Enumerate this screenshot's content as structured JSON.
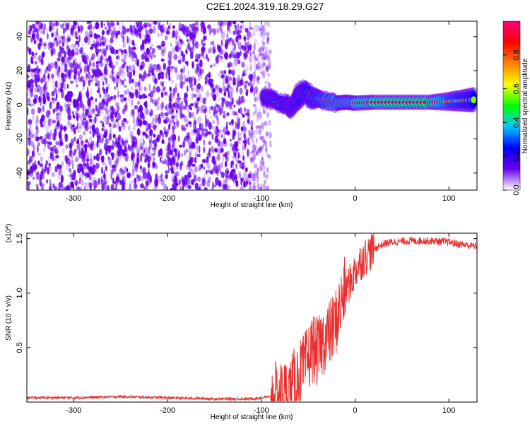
{
  "title": "C2E1.2024.319.18.29.G27",
  "chart_data": [
    {
      "type": "heatmap",
      "xlabel": "Height of straight line (km)",
      "ylabel": "Frequency (Hz)",
      "xlim": [
        -350,
        130
      ],
      "ylim": [
        -50,
        49
      ],
      "x_ticks": [
        -300,
        -200,
        -100,
        0,
        100
      ],
      "y_ticks": [
        -40,
        -20,
        0,
        20,
        40
      ],
      "noise_region": {
        "x": [
          -350,
          -90
        ],
        "y": [
          -50,
          49
        ],
        "color": "#6a00f0"
      },
      "signal_track": [
        {
          "x": -98,
          "y": 5,
          "width_hz": 3,
          "amplitude": 0.45
        },
        {
          "x": -90,
          "y": 3,
          "width_hz": 4,
          "amplitude": 0.4
        },
        {
          "x": -80,
          "y": 1,
          "width_hz": 3,
          "amplitude": 0.45
        },
        {
          "x": -73,
          "y": 0,
          "width_hz": 4,
          "amplitude": 0.5
        },
        {
          "x": -68,
          "y": -2,
          "width_hz": 4,
          "amplitude": 0.4
        },
        {
          "x": -62,
          "y": 5,
          "width_hz": 6,
          "amplitude": 0.5
        },
        {
          "x": -55,
          "y": 7,
          "width_hz": 5,
          "amplitude": 0.55
        },
        {
          "x": -47,
          "y": 5,
          "width_hz": 5,
          "amplitude": 0.6
        },
        {
          "x": -40,
          "y": 3,
          "width_hz": 4,
          "amplitude": 0.65
        },
        {
          "x": -30,
          "y": 2,
          "width_hz": 3,
          "amplitude": 0.75
        },
        {
          "x": -20,
          "y": 1,
          "width_hz": 3,
          "amplitude": 0.8
        },
        {
          "x": -10,
          "y": 1.5,
          "width_hz": 3,
          "amplitude": 0.8
        },
        {
          "x": 0,
          "y": 1,
          "width_hz": 3,
          "amplitude": 0.85
        },
        {
          "x": 20,
          "y": 1.5,
          "width_hz": 3,
          "amplitude": 0.92
        },
        {
          "x": 50,
          "y": 1.5,
          "width_hz": 3,
          "amplitude": 0.95
        },
        {
          "x": 80,
          "y": 1.5,
          "width_hz": 3,
          "amplitude": 0.95
        },
        {
          "x": 100,
          "y": 2,
          "width_hz": 4,
          "amplitude": 0.7
        },
        {
          "x": 115,
          "y": 2.5,
          "width_hz": 5,
          "amplitude": 0.6
        },
        {
          "x": 128,
          "y": 3,
          "width_hz": 6,
          "amplitude": 0.55
        }
      ],
      "colorbar": {
        "label": "Normalized spectral amplitude",
        "range": [
          0.0,
          1.0
        ],
        "ticks": [
          0.0,
          0.2,
          0.4,
          0.6,
          0.8
        ],
        "tick_labels": [
          "0.0",
          "0.2",
          "0.4",
          "0.6",
          "0.8"
        ],
        "colors": [
          "#ffffff",
          "#6a00f0",
          "#0000ff",
          "#00c8ff",
          "#00ff00",
          "#ffff00",
          "#ff8000",
          "#ff0000",
          "#ff0080"
        ]
      }
    },
    {
      "type": "line",
      "xlabel": "Height of straight line (km)",
      "ylabel": "SNR (10 * v/v)",
      "xlim": [
        -350,
        130
      ],
      "ylim": [
        0,
        1.55
      ],
      "x_ticks": [
        -300,
        -200,
        -100,
        0,
        100
      ],
      "y_ticks": [
        0.5,
        1.0,
        1.5
      ],
      "y_tick_labels": [
        "0.5",
        "1.0",
        "1.5"
      ],
      "scale_note": "(x10",
      "scale_exponent": "4",
      "scale_close": ")",
      "color": "#e83030",
      "x": [
        -350,
        -300,
        -250,
        -200,
        -150,
        -110,
        -90,
        -80,
        -70,
        -60,
        -55,
        -50,
        -45,
        -40,
        -35,
        -30,
        -25,
        -20,
        -15,
        -10,
        -5,
        0,
        5,
        10,
        15,
        20,
        25,
        30,
        40,
        60,
        80,
        100,
        110,
        120,
        130
      ],
      "y": [
        0.04,
        0.04,
        0.05,
        0.04,
        0.03,
        0.03,
        0.05,
        0.06,
        0.1,
        0.25,
        0.3,
        0.4,
        0.5,
        0.45,
        0.55,
        0.6,
        0.65,
        0.75,
        0.9,
        1.05,
        1.1,
        1.2,
        1.28,
        1.33,
        1.37,
        1.4,
        1.43,
        1.45,
        1.47,
        1.48,
        1.48,
        1.47,
        1.45,
        1.44,
        1.43
      ]
    }
  ]
}
